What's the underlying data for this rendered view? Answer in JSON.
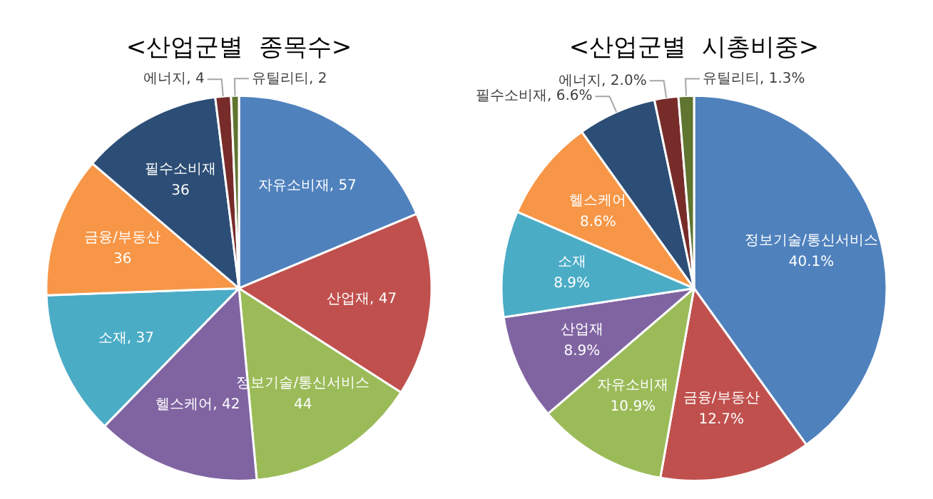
{
  "chart_data": [
    {
      "type": "pie",
      "title": "<산업군별  종목수>",
      "categories": [
        "자유소비재",
        "산업재",
        "정보기술/통신서비스",
        "헬스케어",
        "소재",
        "금융/부동산",
        "필수소비재",
        "에너지",
        "유틸리티"
      ],
      "values": [
        57,
        47,
        44,
        42,
        37,
        36,
        36,
        4,
        2
      ],
      "colors": [
        "#4f81bd",
        "#c0504d",
        "#9bbb59",
        "#8064a2",
        "#4bacc6",
        "#f79646",
        "#2c4d75",
        "#772c2a",
        "#5f7530"
      ],
      "value_labels": [
        "57",
        "47",
        "44",
        "42",
        "37",
        "36",
        "36",
        "4",
        "2"
      ]
    },
    {
      "type": "pie",
      "title": "<산업군별  시총비중>",
      "categories": [
        "정보기술/통신서비스",
        "금융/부동산",
        "자유소비재",
        "산업재",
        "소재",
        "헬스케어",
        "필수소비재",
        "에너지",
        "유틸리티"
      ],
      "values": [
        40.1,
        12.7,
        10.9,
        8.9,
        8.9,
        8.6,
        6.6,
        2.0,
        1.3
      ],
      "colors": [
        "#4f81bd",
        "#c0504d",
        "#9bbb59",
        "#8064a2",
        "#4bacc6",
        "#f79646",
        "#2c4d75",
        "#772c2a",
        "#5f7530"
      ],
      "value_labels": [
        "40.1%",
        "12.7%",
        "10.9%",
        "8.9%",
        "8.9%",
        "8.6%",
        "6.6%",
        "2.0%",
        "1.3%"
      ]
    }
  ]
}
